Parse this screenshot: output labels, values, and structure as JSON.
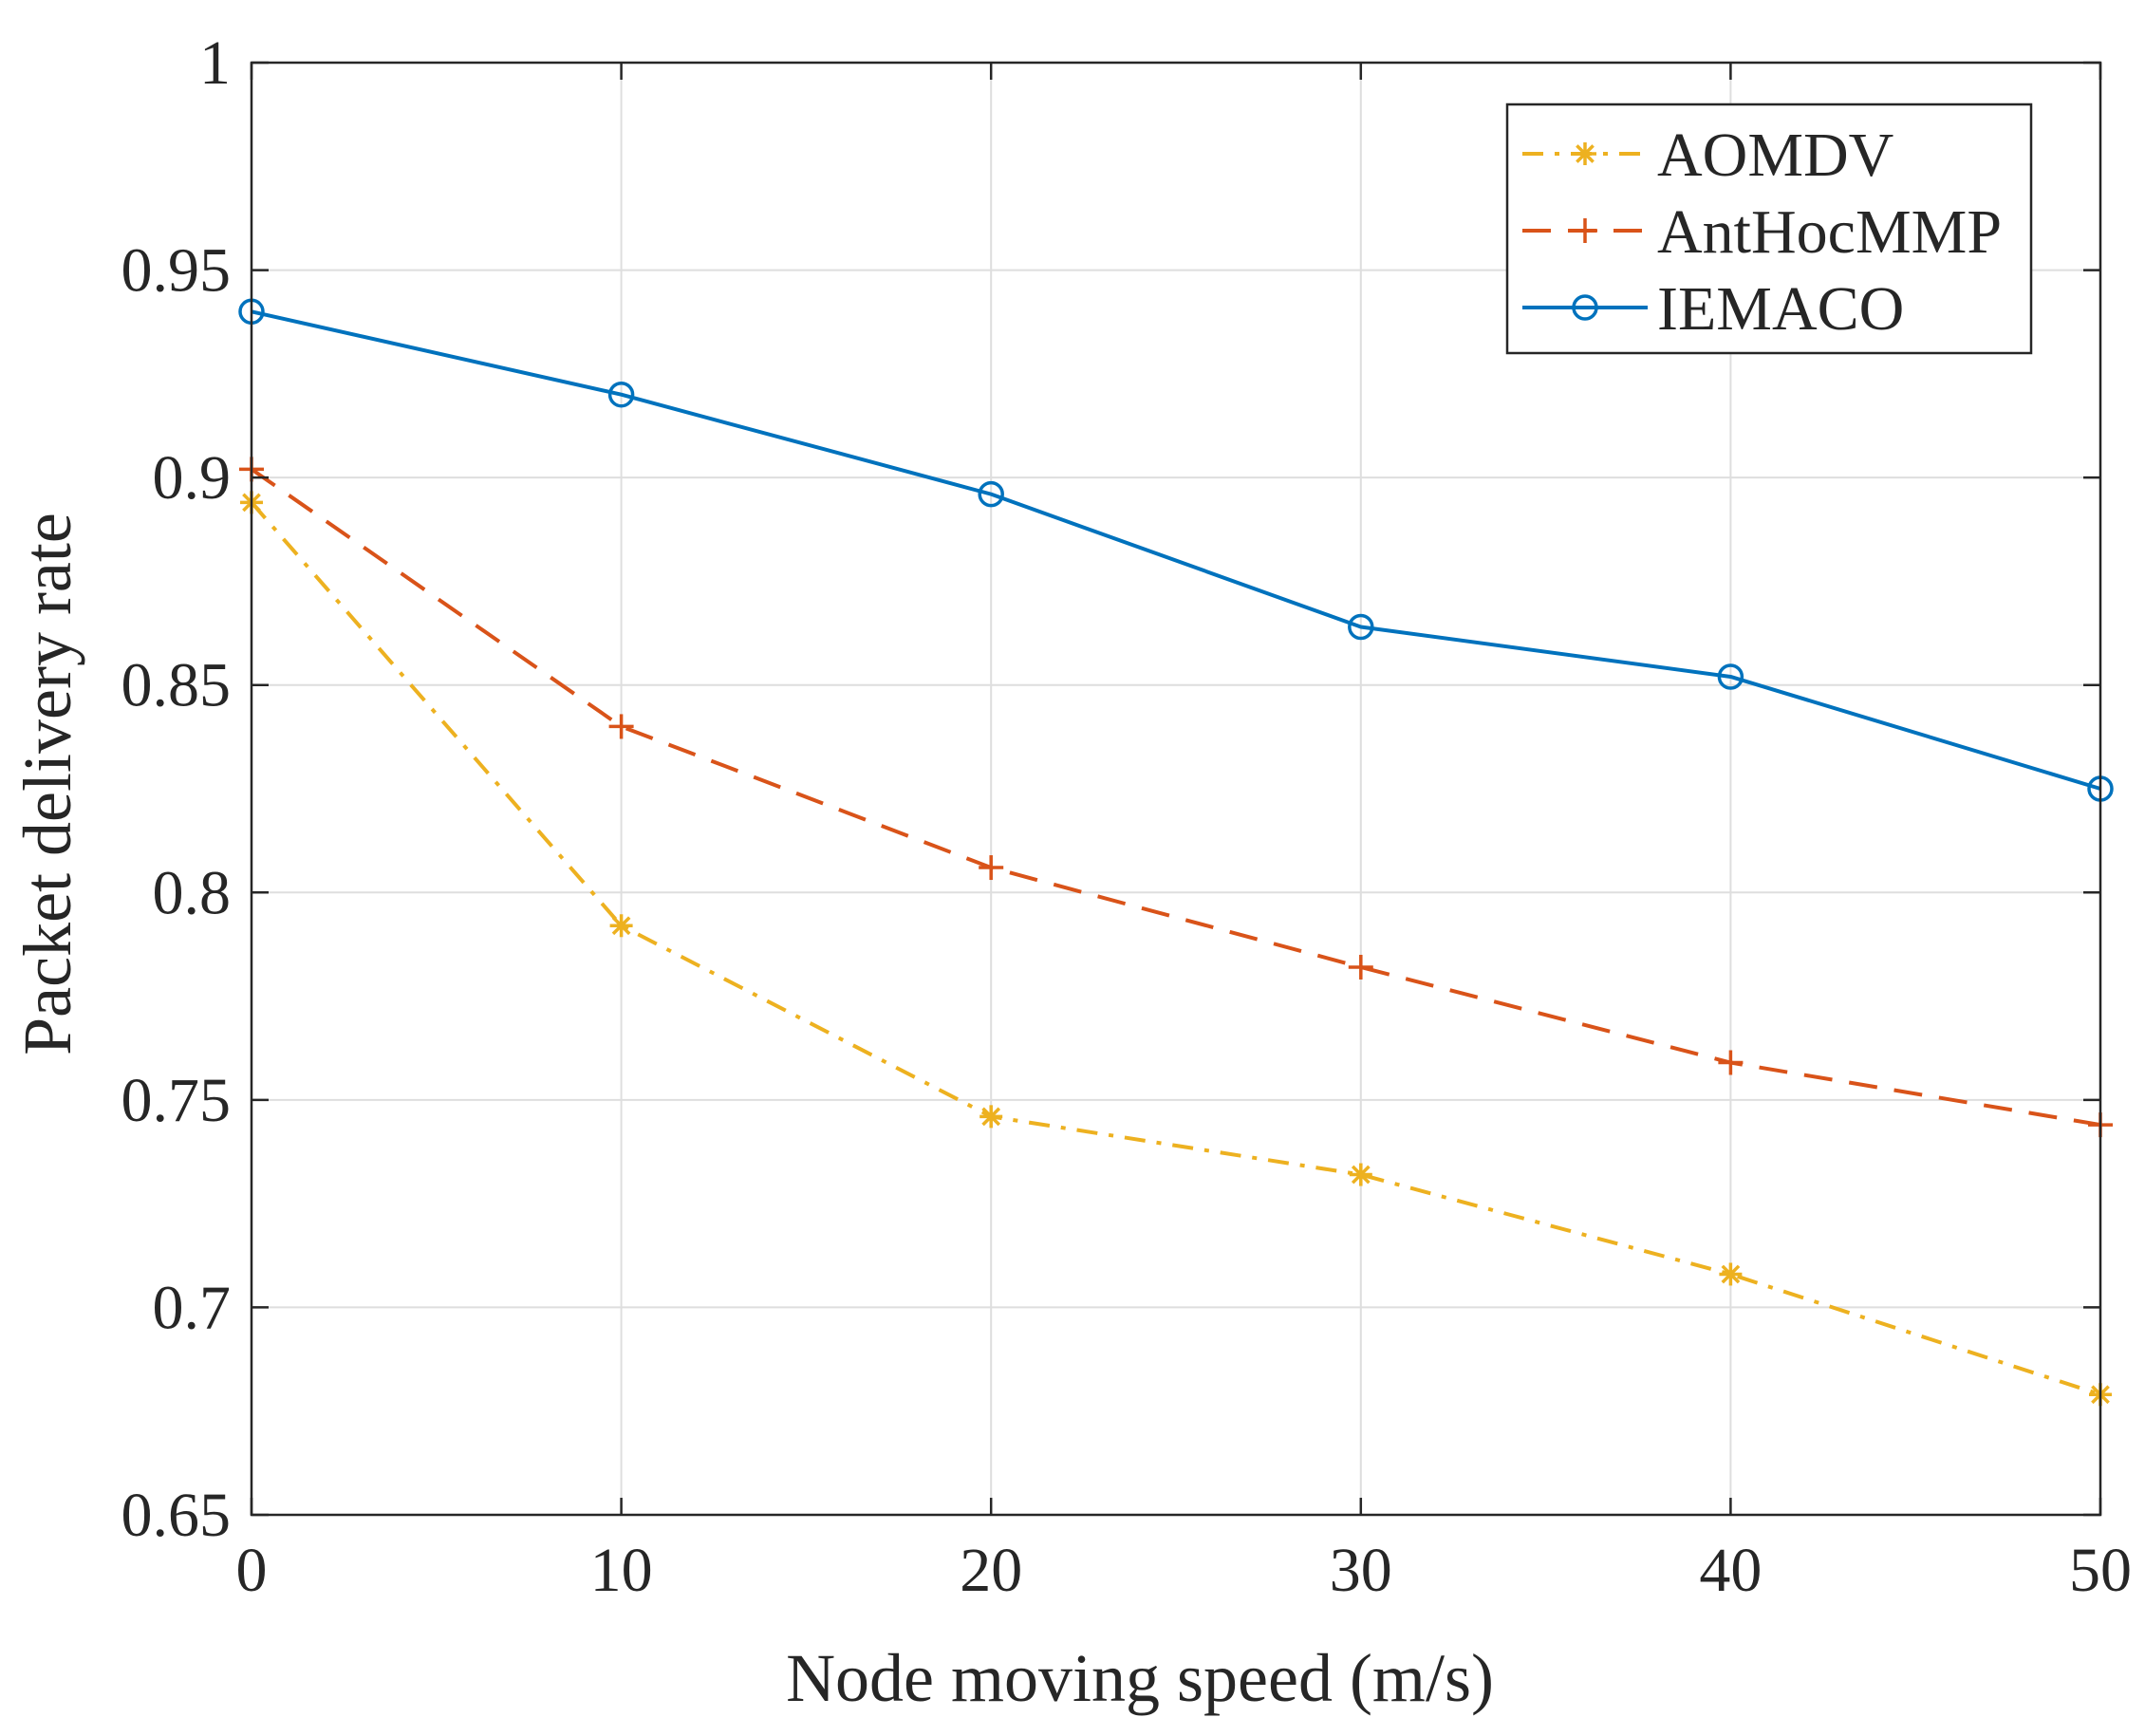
{
  "chart_data": {
    "type": "line",
    "title": "",
    "xlabel": "Node moving speed (m/s)",
    "ylabel": "Packet delivery rate",
    "x": [
      0,
      10,
      20,
      30,
      40,
      50
    ],
    "xlim": [
      0,
      50
    ],
    "ylim": [
      0.65,
      1
    ],
    "xticks": [
      0,
      10,
      20,
      30,
      40,
      50
    ],
    "xtick_labels": [
      "0",
      "10",
      "20",
      "30",
      "40",
      "50"
    ],
    "yticks": [
      0.65,
      0.7,
      0.75,
      0.8,
      0.85,
      0.9,
      0.95,
      1
    ],
    "ytick_labels": [
      "0.65",
      "0.7",
      "0.75",
      "0.8",
      "0.85",
      "0.9",
      "0.95",
      "1"
    ],
    "grid": true,
    "legend_position": "top-right",
    "series": [
      {
        "name": "AOMDV",
        "values": [
          0.894,
          0.792,
          0.746,
          0.732,
          0.708,
          0.679
        ],
        "color": "#EDB120",
        "line_style": "dash-dot",
        "marker": "asterisk"
      },
      {
        "name": "AntHocMMP",
        "values": [
          0.902,
          0.84,
          0.806,
          0.782,
          0.759,
          0.744
        ],
        "color": "#D95319",
        "line_style": "dashed",
        "marker": "plus"
      },
      {
        "name": "IEMACO",
        "values": [
          0.94,
          0.92,
          0.896,
          0.864,
          0.852,
          0.825
        ],
        "color": "#0072BD",
        "line_style": "solid",
        "marker": "circle"
      }
    ]
  }
}
